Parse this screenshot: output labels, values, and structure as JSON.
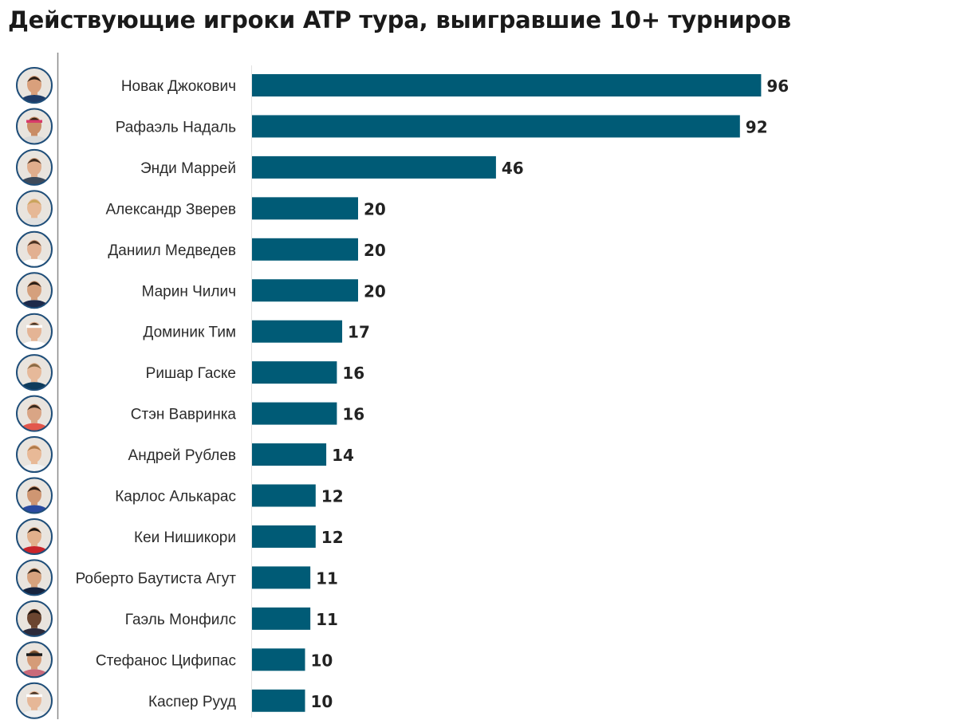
{
  "title": "Действующие игроки ATP тура, выигравшие 10+ турниров",
  "bar_color": "#005b76",
  "chart_data": {
    "type": "bar",
    "orientation": "horizontal",
    "title": "Действующие игроки ATP тура, выигравшие 10+ турниров",
    "xlabel": "",
    "ylabel": "",
    "grid": false,
    "categories": [
      "Новак Джокович",
      "Рафаэль Надаль",
      "Энди Маррей",
      "Александр Зверев",
      "Даниил Медведев",
      "Марин Чилич",
      "Доминик Тим",
      "Ришар Гаске",
      "Стэн Вавринка",
      "Андрей Рублев",
      "Карлос Алькарас",
      "Кеи Нишикори",
      "Роберто Баутиста Агут",
      "Гаэль Монфилс",
      "Стефанос Цифипас",
      "Каспер Рууд"
    ],
    "values": [
      96,
      92,
      46,
      20,
      20,
      20,
      17,
      16,
      16,
      14,
      12,
      12,
      11,
      11,
      10,
      10
    ],
    "avatars": [
      {
        "shirt": "#1f3c68",
        "hair": "#2a1d14",
        "skin": "#d9a07c"
      },
      {
        "shirt": "#d9d9d9",
        "hair": "#3a2416",
        "skin": "#c98c66",
        "band": "#d83a6a"
      },
      {
        "shirt": "#3e4a5a",
        "hair": "#3b2a1e",
        "skin": "#e0ad8c"
      },
      {
        "shirt": "#e0e0e0",
        "hair": "#c9a45c",
        "skin": "#e6b896"
      },
      {
        "shirt": "#ffffff",
        "hair": "#4a3222",
        "skin": "#e2b091"
      },
      {
        "shirt": "#1d2a4a",
        "hair": "#2b1e15",
        "skin": "#d5a07d"
      },
      {
        "shirt": "#ffffff",
        "hair": "#4b3624",
        "skin": "#e4b495",
        "band": "#ffffff"
      },
      {
        "shirt": "#0e3b5c",
        "hair": "#8a6a44",
        "skin": "#e6b99a"
      },
      {
        "shirt": "#e2574c",
        "hair": "#3a2a1d",
        "skin": "#d9a585"
      },
      {
        "shirt": "#f2f2f2",
        "hair": "#b07a48",
        "skin": "#e8b997"
      },
      {
        "shirt": "#2a4aa0",
        "hair": "#2b1b12",
        "skin": "#cf9672"
      },
      {
        "shirt": "#c8252b",
        "hair": "#1b1410",
        "skin": "#e1b08c"
      },
      {
        "shirt": "#16243f",
        "hair": "#1e1812",
        "skin": "#d6a27e"
      },
      {
        "shirt": "#2c2a3a",
        "hair": "#120d0a",
        "skin": "#6b4530"
      },
      {
        "shirt": "#c96a7a",
        "hair": "#6b4a2c",
        "skin": "#d59c78",
        "band": "#1b1b1b"
      },
      {
        "shirt": "#f0f0f0",
        "hair": "#4a3424",
        "skin": "#e6b797",
        "band": "#ffffff"
      }
    ]
  }
}
